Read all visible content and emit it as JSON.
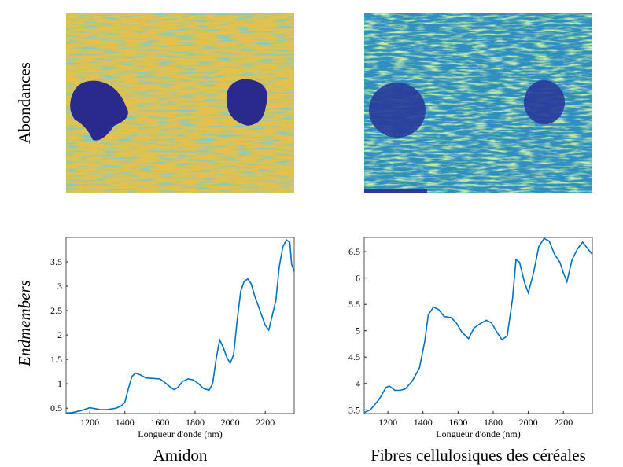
{
  "row_labels": [
    "Abondances",
    "Endmembers"
  ],
  "column_labels": [
    "Amidon",
    "Fibres cellulosiques des céréales"
  ],
  "chart_data": [
    {
      "type": "line",
      "x_label": "Longueur d'onde (nm)",
      "x": [
        1065,
        1100,
        1150,
        1200,
        1230,
        1260,
        1300,
        1350,
        1380,
        1400,
        1420,
        1440,
        1460,
        1490,
        1520,
        1560,
        1600,
        1630,
        1660,
        1680,
        1700,
        1730,
        1760,
        1790,
        1820,
        1850,
        1880,
        1900,
        1920,
        1940,
        1960,
        1980,
        2000,
        2020,
        2040,
        2060,
        2080,
        2100,
        2120,
        2140,
        2160,
        2180,
        2200,
        2220,
        2240,
        2260,
        2280,
        2300,
        2320,
        2340,
        2350,
        2365
      ],
      "series": [
        {
          "color": "#0072bd",
          "values": [
            0.4,
            0.41,
            0.45,
            0.51,
            0.49,
            0.47,
            0.47,
            0.5,
            0.55,
            0.62,
            0.9,
            1.15,
            1.22,
            1.18,
            1.12,
            1.11,
            1.1,
            1.02,
            0.93,
            0.88,
            0.92,
            1.05,
            1.1,
            1.08,
            1.0,
            0.9,
            0.87,
            1.0,
            1.5,
            1.9,
            1.75,
            1.55,
            1.42,
            1.6,
            2.3,
            2.9,
            3.1,
            3.15,
            3.05,
            2.8,
            2.6,
            2.4,
            2.2,
            2.1,
            2.4,
            2.7,
            3.4,
            3.8,
            3.95,
            3.9,
            3.45,
            3.3
          ]
        }
      ],
      "xlim": [
        1065,
        2365
      ],
      "ylim": [
        0.39,
        4.0
      ],
      "xticks": [
        1200,
        1400,
        1600,
        1800,
        2000,
        2200
      ],
      "yticks": [
        0.5,
        1,
        1.5,
        2,
        2.5,
        3,
        3.5
      ]
    },
    {
      "type": "line",
      "x_label": "Longueur d'onde (nm)",
      "x": [
        1065,
        1100,
        1150,
        1190,
        1210,
        1240,
        1270,
        1300,
        1340,
        1380,
        1410,
        1430,
        1460,
        1490,
        1520,
        1560,
        1590,
        1620,
        1660,
        1690,
        1720,
        1760,
        1790,
        1820,
        1850,
        1880,
        1910,
        1930,
        1950,
        1980,
        2000,
        2030,
        2060,
        2090,
        2120,
        2150,
        2180,
        2200,
        2220,
        2250,
        2280,
        2310,
        2340,
        2365
      ],
      "series": [
        {
          "color": "#0072bd",
          "values": [
            3.45,
            3.5,
            3.7,
            3.93,
            3.95,
            3.87,
            3.87,
            3.9,
            4.05,
            4.3,
            4.8,
            5.3,
            5.45,
            5.4,
            5.27,
            5.25,
            5.15,
            4.98,
            4.85,
            5.05,
            5.12,
            5.2,
            5.15,
            4.98,
            4.83,
            4.9,
            5.6,
            6.35,
            6.3,
            5.9,
            5.72,
            6.1,
            6.6,
            6.75,
            6.7,
            6.45,
            6.3,
            6.1,
            5.93,
            6.35,
            6.55,
            6.68,
            6.55,
            6.45
          ]
        }
      ],
      "xlim": [
        1065,
        2365
      ],
      "ylim": [
        3.43,
        6.77
      ],
      "xticks": [
        1200,
        1400,
        1600,
        1800,
        2000,
        2200
      ],
      "yticks": [
        3.5,
        4,
        4.5,
        5,
        5.5,
        6,
        6.5
      ]
    }
  ]
}
